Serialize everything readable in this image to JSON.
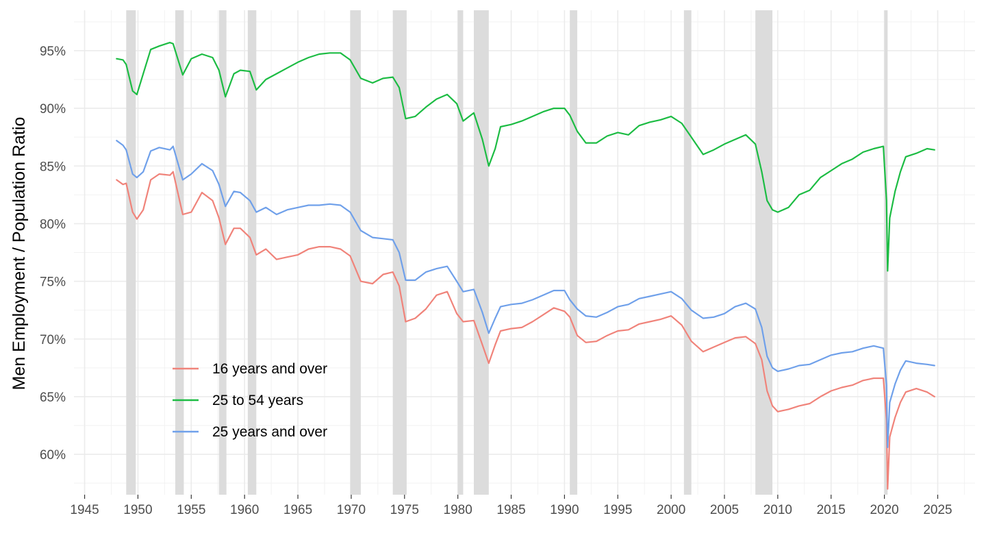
{
  "chart_data": {
    "type": "line",
    "title": "",
    "xlabel": "",
    "ylabel": "Men Employment / Population Ratio",
    "xlim": [
      1944.0,
      2028.5
    ],
    "ylim": [
      56.5,
      98.5
    ],
    "x_ticks": [
      1945,
      1950,
      1955,
      1960,
      1965,
      1970,
      1975,
      1980,
      1985,
      1990,
      1995,
      2000,
      2005,
      2010,
      2015,
      2020,
      2025
    ],
    "x_tick_labels": [
      "1945",
      "1950",
      "1955",
      "1960",
      "1965",
      "1970",
      "1975",
      "1980",
      "1985",
      "1990",
      "1995",
      "2000",
      "2005",
      "2010",
      "2015",
      "2020",
      "2025"
    ],
    "y_ticks": [
      60,
      65,
      70,
      75,
      80,
      85,
      90,
      95
    ],
    "y_tick_labels": [
      "60%",
      "65%",
      "70%",
      "75%",
      "80%",
      "85%",
      "90%",
      "95%"
    ],
    "grid": true,
    "legend_position": "bottom-left",
    "recession_bands": [
      [
        1948.9,
        1949.8
      ],
      [
        1953.5,
        1954.3
      ],
      [
        1957.6,
        1958.3
      ],
      [
        1960.3,
        1961.1
      ],
      [
        1969.9,
        1970.9
      ],
      [
        1973.9,
        1975.2
      ],
      [
        1980.0,
        1980.5
      ],
      [
        1981.5,
        1982.9
      ],
      [
        1990.5,
        1991.2
      ],
      [
        2001.2,
        2001.9
      ],
      [
        2007.9,
        2009.5
      ],
      [
        2020.0,
        2020.3
      ]
    ],
    "series": [
      {
        "name": "16 years and over",
        "color": "#f0837a",
        "x": [
          1948.0,
          1948.6,
          1948.9,
          1949.5,
          1949.9,
          1950.5,
          1951.2,
          1952.0,
          1953.0,
          1953.3,
          1954.2,
          1955.0,
          1956.0,
          1957.0,
          1957.6,
          1958.2,
          1959.0,
          1959.6,
          1960.5,
          1961.1,
          1962.0,
          1963.0,
          1964.0,
          1965.0,
          1966.0,
          1967.0,
          1968.0,
          1969.0,
          1969.9,
          1970.9,
          1972.0,
          1973.0,
          1973.9,
          1974.5,
          1975.1,
          1976.0,
          1977.0,
          1978.0,
          1979.0,
          1979.9,
          1980.5,
          1981.5,
          1982.3,
          1982.9,
          1983.5,
          1984.0,
          1985.0,
          1986.0,
          1987.0,
          1988.0,
          1989.0,
          1990.0,
          1990.5,
          1991.2,
          1992.0,
          1993.0,
          1994.0,
          1995.0,
          1996.0,
          1997.0,
          1998.0,
          1999.0,
          2000.0,
          2001.0,
          2001.9,
          2003.0,
          2004.0,
          2005.0,
          2006.0,
          2007.0,
          2007.9,
          2008.5,
          2009.0,
          2009.5,
          2010.0,
          2011.0,
          2012.0,
          2013.0,
          2014.0,
          2015.0,
          2016.0,
          2017.0,
          2018.0,
          2019.0,
          2019.9,
          2020.2,
          2020.3,
          2020.5,
          2021.0,
          2021.5,
          2022.0,
          2023.0,
          2024.0,
          2024.7
        ],
        "values": [
          83.8,
          83.4,
          83.5,
          81.0,
          80.4,
          81.2,
          83.8,
          84.3,
          84.2,
          84.5,
          80.8,
          81.0,
          82.7,
          82.0,
          80.5,
          78.2,
          79.6,
          79.6,
          78.8,
          77.3,
          77.8,
          76.9,
          77.1,
          77.3,
          77.8,
          78.0,
          78.0,
          77.8,
          77.2,
          75.0,
          74.8,
          75.6,
          75.8,
          74.6,
          71.5,
          71.8,
          72.6,
          73.8,
          74.1,
          72.2,
          71.5,
          71.6,
          69.5,
          67.9,
          69.5,
          70.7,
          70.9,
          71.0,
          71.5,
          72.1,
          72.7,
          72.4,
          71.9,
          70.3,
          69.7,
          69.8,
          70.3,
          70.7,
          70.8,
          71.3,
          71.5,
          71.7,
          72.0,
          71.2,
          69.8,
          68.9,
          69.3,
          69.7,
          70.1,
          70.2,
          69.6,
          68.2,
          65.5,
          64.2,
          63.7,
          63.9,
          64.2,
          64.4,
          65.0,
          65.5,
          65.8,
          66.0,
          66.4,
          66.6,
          66.6,
          63.0,
          57.0,
          61.5,
          63.2,
          64.5,
          65.4,
          65.7,
          65.4,
          65.0
        ]
      },
      {
        "name": "25 to 54 years",
        "color": "#1cbc43",
        "x": [
          1948.0,
          1948.6,
          1948.9,
          1949.5,
          1949.9,
          1950.5,
          1951.2,
          1952.0,
          1953.0,
          1953.3,
          1954.2,
          1955.0,
          1956.0,
          1957.0,
          1957.6,
          1958.2,
          1959.0,
          1959.6,
          1960.5,
          1961.1,
          1962.0,
          1963.0,
          1964.0,
          1965.0,
          1966.0,
          1967.0,
          1968.0,
          1969.0,
          1969.9,
          1970.9,
          1972.0,
          1973.0,
          1973.9,
          1974.5,
          1975.1,
          1976.0,
          1977.0,
          1978.0,
          1979.0,
          1979.9,
          1980.5,
          1981.5,
          1982.3,
          1982.9,
          1983.5,
          1984.0,
          1985.0,
          1986.0,
          1987.0,
          1988.0,
          1989.0,
          1990.0,
          1990.5,
          1991.2,
          1992.0,
          1993.0,
          1994.0,
          1995.0,
          1996.0,
          1997.0,
          1998.0,
          1999.0,
          2000.0,
          2001.0,
          2001.9,
          2003.0,
          2004.0,
          2005.0,
          2006.0,
          2007.0,
          2007.9,
          2008.5,
          2009.0,
          2009.5,
          2010.0,
          2011.0,
          2012.0,
          2013.0,
          2014.0,
          2015.0,
          2016.0,
          2017.0,
          2018.0,
          2019.0,
          2019.9,
          2020.2,
          2020.3,
          2020.5,
          2021.0,
          2021.5,
          2022.0,
          2023.0,
          2024.0,
          2024.7
        ],
        "values": [
          94.3,
          94.2,
          93.8,
          91.5,
          91.2,
          93.0,
          95.1,
          95.4,
          95.7,
          95.6,
          92.9,
          94.3,
          94.7,
          94.4,
          93.3,
          91.0,
          93.0,
          93.3,
          93.2,
          91.6,
          92.5,
          93.0,
          93.5,
          94.0,
          94.4,
          94.7,
          94.8,
          94.8,
          94.2,
          92.6,
          92.2,
          92.6,
          92.7,
          91.8,
          89.1,
          89.3,
          90.1,
          90.8,
          91.2,
          90.4,
          88.9,
          89.6,
          87.3,
          85.0,
          86.5,
          88.4,
          88.6,
          88.9,
          89.3,
          89.7,
          90.0,
          90.0,
          89.4,
          88.0,
          87.0,
          87.0,
          87.6,
          87.9,
          87.7,
          88.5,
          88.8,
          89.0,
          89.3,
          88.7,
          87.5,
          86.0,
          86.4,
          86.9,
          87.3,
          87.7,
          86.9,
          84.5,
          82.0,
          81.2,
          81.0,
          81.4,
          82.5,
          82.9,
          84.0,
          84.6,
          85.2,
          85.6,
          86.2,
          86.5,
          86.7,
          82.0,
          75.9,
          80.5,
          82.8,
          84.5,
          85.8,
          86.1,
          86.5,
          86.4
        ]
      },
      {
        "name": "25 years and over",
        "color": "#6fa0ea",
        "x": [
          1948.0,
          1948.6,
          1948.9,
          1949.5,
          1949.9,
          1950.5,
          1951.2,
          1952.0,
          1953.0,
          1953.3,
          1954.2,
          1955.0,
          1956.0,
          1957.0,
          1957.6,
          1958.2,
          1959.0,
          1959.6,
          1960.5,
          1961.1,
          1962.0,
          1963.0,
          1964.0,
          1965.0,
          1966.0,
          1967.0,
          1968.0,
          1969.0,
          1969.9,
          1970.9,
          1972.0,
          1973.0,
          1973.9,
          1974.5,
          1975.1,
          1976.0,
          1977.0,
          1978.0,
          1979.0,
          1979.9,
          1980.5,
          1981.5,
          1982.3,
          1982.9,
          1983.5,
          1984.0,
          1985.0,
          1986.0,
          1987.0,
          1988.0,
          1989.0,
          1990.0,
          1990.5,
          1991.2,
          1992.0,
          1993.0,
          1994.0,
          1995.0,
          1996.0,
          1997.0,
          1998.0,
          1999.0,
          2000.0,
          2001.0,
          2001.9,
          2003.0,
          2004.0,
          2005.0,
          2006.0,
          2007.0,
          2007.9,
          2008.5,
          2009.0,
          2009.5,
          2010.0,
          2011.0,
          2012.0,
          2013.0,
          2014.0,
          2015.0,
          2016.0,
          2017.0,
          2018.0,
          2019.0,
          2019.9,
          2020.2,
          2020.3,
          2020.5,
          2021.0,
          2021.5,
          2022.0,
          2023.0,
          2024.0,
          2024.7
        ],
        "values": [
          87.2,
          86.8,
          86.4,
          84.3,
          84.0,
          84.5,
          86.3,
          86.6,
          86.4,
          86.7,
          83.8,
          84.3,
          85.2,
          84.6,
          83.4,
          81.5,
          82.8,
          82.7,
          82.0,
          81.0,
          81.4,
          80.8,
          81.2,
          81.4,
          81.6,
          81.6,
          81.7,
          81.6,
          81.0,
          79.4,
          78.8,
          78.7,
          78.6,
          77.5,
          75.1,
          75.1,
          75.8,
          76.1,
          76.3,
          75.0,
          74.1,
          74.3,
          72.3,
          70.5,
          71.8,
          72.8,
          73.0,
          73.1,
          73.4,
          73.8,
          74.2,
          74.2,
          73.4,
          72.6,
          72.0,
          71.9,
          72.3,
          72.8,
          73.0,
          73.5,
          73.7,
          73.9,
          74.1,
          73.5,
          72.5,
          71.8,
          71.9,
          72.2,
          72.8,
          73.1,
          72.6,
          71.0,
          68.5,
          67.5,
          67.2,
          67.4,
          67.7,
          67.8,
          68.2,
          68.6,
          68.8,
          68.9,
          69.2,
          69.4,
          69.2,
          66.0,
          60.6,
          64.5,
          66.1,
          67.3,
          68.1,
          67.9,
          67.8,
          67.7
        ]
      }
    ]
  }
}
